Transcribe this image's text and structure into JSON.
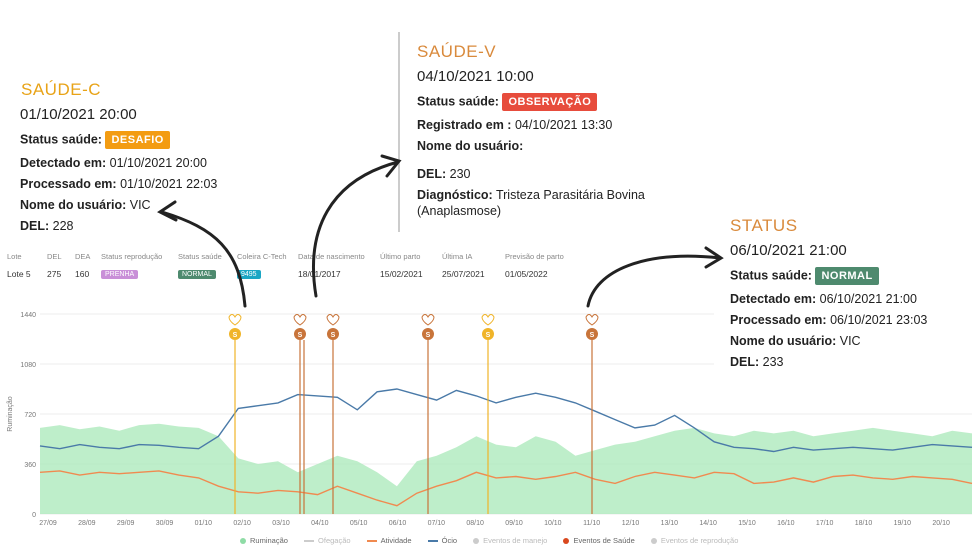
{
  "cards": {
    "c": {
      "title": "SAÚDE-C",
      "timestamp": "01/10/2021 20:00",
      "status_label": "Status saúde:",
      "status_value": "DESAFIO",
      "status_color": "#f39c12",
      "rows": [
        {
          "label": "Detectado em:",
          "value": "01/10/2021 20:00"
        },
        {
          "label": "Processado em:",
          "value": "01/10/2021 22:03"
        },
        {
          "label": "Nome do usuário:",
          "value": "VIC"
        },
        {
          "label": "DEL:",
          "value": "228"
        }
      ]
    },
    "v": {
      "title": "SAÚDE-V",
      "timestamp": "04/10/2021 10:00",
      "status_label": "Status saúde:",
      "status_value": "OBSERVAÇÃO",
      "status_color": "#e74c3c",
      "rows": [
        {
          "label": "Registrado em :",
          "value": "04/10/2021 13:30"
        },
        {
          "label": "Nome do usuário:",
          "value": ""
        },
        {
          "label": "DEL:",
          "value": "230"
        },
        {
          "label": "Diagnóstico:",
          "value": "Tristeza Parasitária Bovina"
        }
      ],
      "diag_line2": "(Anaplasmose)"
    },
    "s": {
      "title": "STATUS",
      "timestamp": "06/10/2021 21:00",
      "status_label": "Status saúde:",
      "status_value": "NORMAL",
      "status_color": "#4e8a6e",
      "rows": [
        {
          "label": "Detectado em:",
          "value": "06/10/2021 21:00"
        },
        {
          "label": "Processado em:",
          "value": "06/10/2021 23:03"
        },
        {
          "label": "Nome do usuário:",
          "value": "VIC"
        },
        {
          "label": "DEL:",
          "value": "233"
        }
      ]
    }
  },
  "info_table": {
    "headers": [
      "Lote",
      "DEL",
      "DEA",
      "Status reprodução",
      "Status saúde",
      "Coleira C-Tech",
      "Data de nascimento",
      "Último parto",
      "Última IA",
      "Previsão de parto"
    ],
    "values": [
      "Lote 5",
      "275",
      "160",
      "PRENHA",
      "NORMAL",
      "9495",
      "18/01/2017",
      "15/02/2021",
      "25/07/2021",
      "01/05/2022"
    ],
    "pill_colors": {
      "PRENHA": "#c98fd8",
      "NORMAL": "#4e8a6e",
      "9495": "#1aa6c4"
    }
  },
  "chart_data": {
    "type": "line",
    "ylabel": "Ruminação",
    "yticks": [
      0,
      360,
      720,
      1080,
      1440
    ],
    "ylim": [
      0,
      1440
    ],
    "x_ticks": [
      "27/09",
      "28/09",
      "29/09",
      "30/09",
      "01/10",
      "02/10",
      "03/10",
      "04/10",
      "05/10",
      "06/10",
      "07/10",
      "08/10",
      "09/10",
      "10/10",
      "11/10",
      "12/10",
      "13/10",
      "14/10",
      "15/10",
      "16/10",
      "17/10",
      "18/10",
      "19/10",
      "20/10"
    ],
    "xlim": [
      "27/09",
      "21/10"
    ],
    "series": [
      {
        "name": "Ócio",
        "color": "#4a7aa8",
        "values": [
          490,
          470,
          500,
          480,
          470,
          500,
          495,
          480,
          470,
          560,
          760,
          780,
          800,
          860,
          850,
          840,
          750,
          880,
          900,
          860,
          820,
          890,
          850,
          800,
          840,
          870,
          840,
          800,
          740,
          680,
          620,
          640,
          710,
          620,
          520,
          480,
          470,
          450,
          480,
          460,
          470,
          480,
          470,
          460,
          480,
          500,
          490,
          480
        ]
      },
      {
        "name": "Atividade",
        "color": "#f08a50",
        "values": [
          300,
          310,
          280,
          300,
          290,
          300,
          310,
          280,
          260,
          200,
          160,
          150,
          170,
          160,
          140,
          200,
          150,
          100,
          60,
          150,
          200,
          240,
          300,
          260,
          270,
          250,
          270,
          300,
          250,
          220,
          270,
          300,
          280,
          260,
          300,
          290,
          220,
          230,
          260,
          230,
          270,
          280,
          260,
          250,
          270,
          260,
          250,
          220
        ]
      },
      {
        "name": "Ruminação",
        "color": "#a8e8b8",
        "values": [
          620,
          640,
          610,
          630,
          600,
          640,
          650,
          630,
          620,
          560,
          400,
          360,
          380,
          300,
          360,
          420,
          380,
          300,
          200,
          380,
          420,
          480,
          560,
          500,
          480,
          560,
          520,
          420,
          460,
          500,
          520,
          560,
          600,
          620,
          580,
          560,
          600,
          580,
          600,
          560,
          580,
          600,
          620,
          600,
          580,
          560,
          600,
          580
        ]
      }
    ],
    "events": [
      {
        "date": "01/10 20:00",
        "value": "S",
        "kind": "Saúde-C",
        "color": "#f0b429"
      },
      {
        "date": "03/10 18:00",
        "value": "S",
        "kind": "Saúde-V",
        "color": "#c8743a"
      },
      {
        "date": "04/10 10:00",
        "value": "S",
        "kind": "Saúde-V",
        "color": "#c8743a"
      },
      {
        "date": "06/10 21:00",
        "value": "S",
        "kind": "Status",
        "color": "#c8743a"
      },
      {
        "date": "08/10 12:00",
        "value": "S",
        "kind": "Saúde-C",
        "color": "#f0b429"
      },
      {
        "date": "10/10 14:00",
        "value": "S",
        "kind": "Status",
        "color": "#c8743a"
      }
    ],
    "legend": [
      "Ruminação",
      "Ofegação",
      "Atividade",
      "Ócio",
      "Eventos de manejo",
      "Eventos de Saúde",
      "Eventos de reprodução"
    ],
    "legend_colors": [
      "#8fdca6",
      "#cccccc",
      "#f08a50",
      "#4a7aa8",
      "#cccccc",
      "#d9481e",
      "#cccccc"
    ]
  }
}
